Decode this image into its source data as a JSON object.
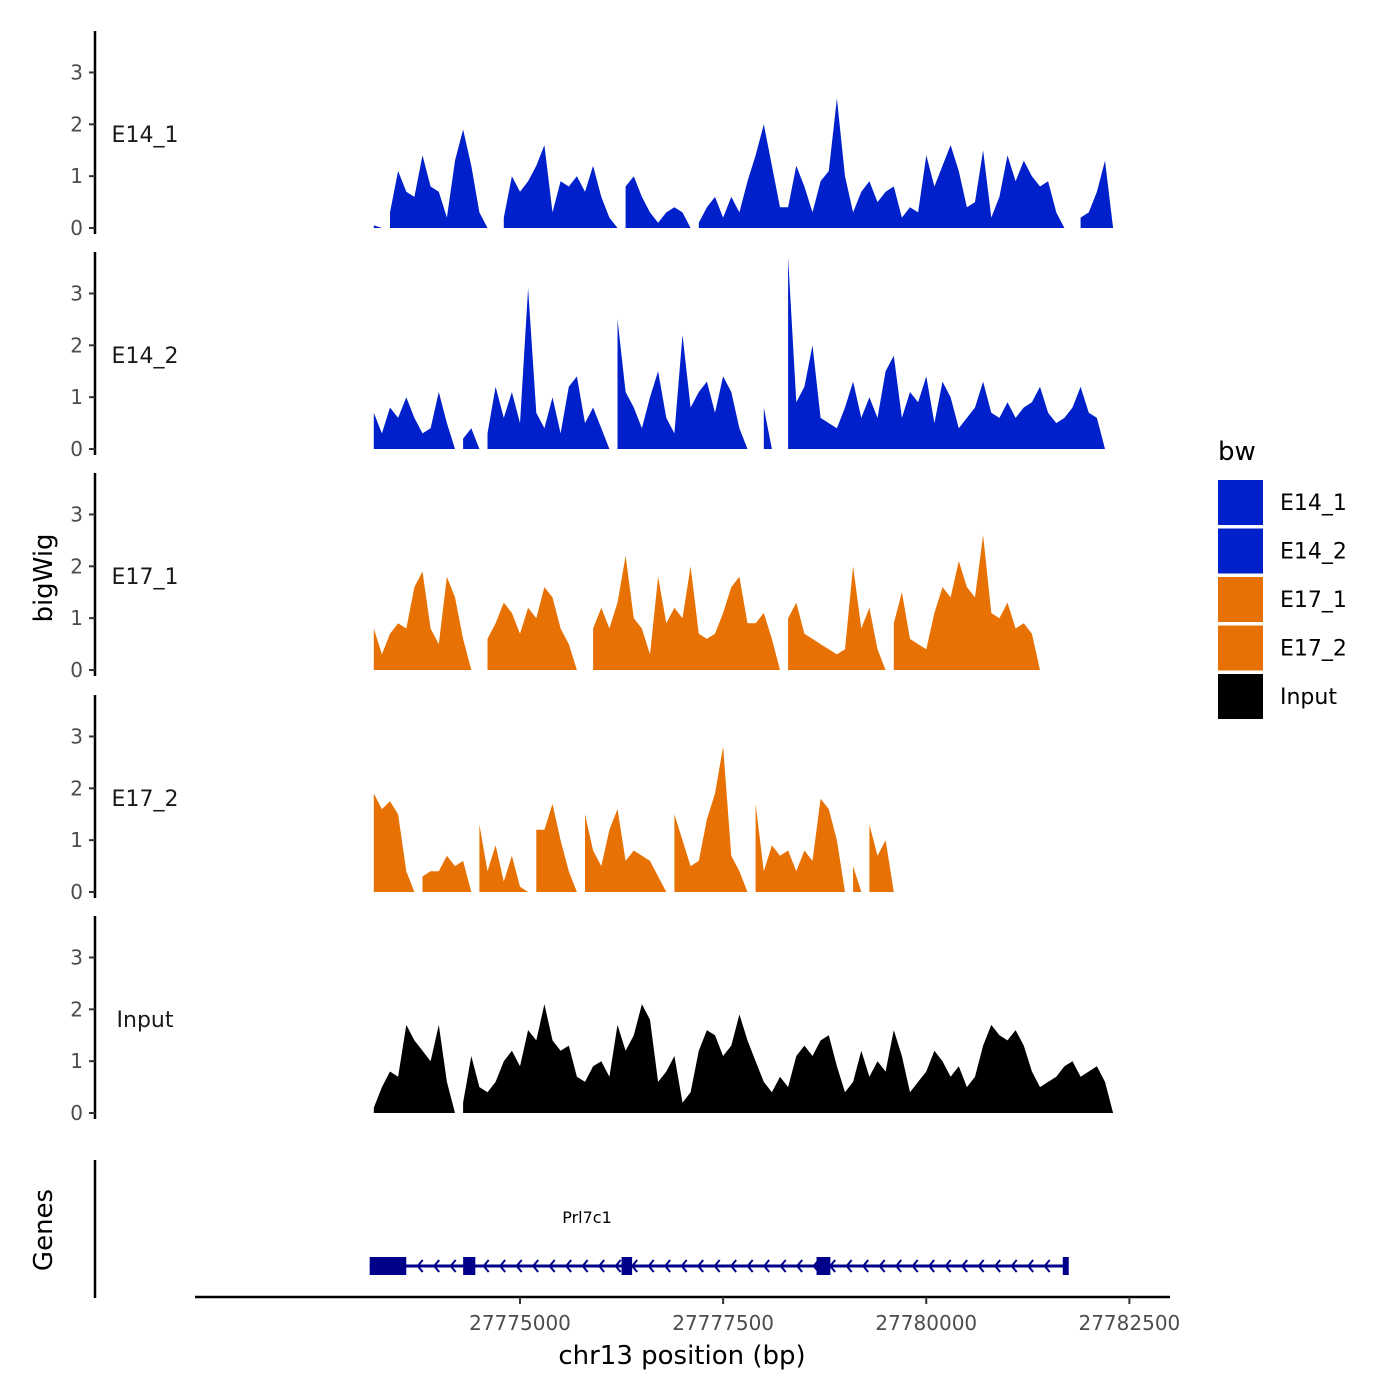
{
  "chart_data": {
    "type": "area",
    "x": [
      27773200,
      27773300,
      27773400,
      27773500,
      27773600,
      27773700,
      27773800,
      27773900,
      27774000,
      27774100,
      27774200,
      27774300,
      27774400,
      27774500,
      27774600,
      27774700,
      27774800,
      27774900,
      27775000,
      27775100,
      27775200,
      27775300,
      27775400,
      27775500,
      27775600,
      27775700,
      27775800,
      27775900,
      27776000,
      27776100,
      27776200,
      27776300,
      27776400,
      27776500,
      27776600,
      27776700,
      27776800,
      27776900,
      27777000,
      27777100,
      27777200,
      27777300,
      27777400,
      27777500,
      27777600,
      27777700,
      27777800,
      27777900,
      27778000,
      27778100,
      27778200,
      27778300,
      27778400,
      27778500,
      27778600,
      27778700,
      27778800,
      27778900,
      27779000,
      27779100,
      27779200,
      27779300,
      27779400,
      27779500,
      27779600,
      27779700,
      27779800,
      27779900,
      27780000,
      27780100,
      27780200,
      27780300,
      27780400,
      27780500,
      27780600,
      27780700,
      27780800,
      27780900,
      27781000,
      27781100,
      27781200,
      27781300,
      27781400,
      27781500,
      27781600,
      27781700,
      27781800,
      27781900,
      27782000,
      27782100,
      27782200,
      27782300,
      27782400,
      27782500,
      27782600,
      27782700
    ],
    "series": [
      {
        "name": "E14_1",
        "color": "#0020CC",
        "values": [
          0.05,
          0.0,
          0.3,
          1.1,
          0.7,
          0.6,
          1.4,
          0.8,
          0.7,
          0.2,
          1.3,
          1.9,
          1.2,
          0.3,
          0.0,
          0.0,
          0.2,
          1.0,
          0.7,
          0.9,
          1.2,
          1.6,
          0.3,
          0.9,
          0.8,
          1.0,
          0.7,
          1.2,
          0.6,
          0.2,
          0.0,
          0.8,
          1.0,
          0.6,
          0.3,
          0.1,
          0.3,
          0.4,
          0.3,
          0.0,
          0.1,
          0.4,
          0.6,
          0.2,
          0.6,
          0.3,
          0.9,
          1.4,
          2.0,
          1.2,
          0.4,
          0.4,
          1.2,
          0.8,
          0.3,
          0.9,
          1.1,
          2.5,
          1.0,
          0.3,
          0.7,
          0.9,
          0.5,
          0.7,
          0.8,
          0.2,
          0.4,
          0.3,
          1.4,
          0.8,
          1.2,
          1.6,
          1.1,
          0.4,
          0.5,
          1.5,
          0.2,
          0.6,
          1.4,
          0.9,
          1.3,
          1.0,
          0.8,
          0.9,
          0.3,
          0.0,
          0.0,
          0.2,
          0.3,
          0.7,
          1.3,
          0.0,
          0.0,
          0.0,
          0.0,
          0.0
        ]
      },
      {
        "name": "E14_2",
        "color": "#0020CC",
        "values": [
          0.7,
          0.3,
          0.8,
          0.6,
          1.0,
          0.6,
          0.3,
          0.4,
          1.1,
          0.5,
          0.0,
          0.2,
          0.4,
          0.0,
          0.3,
          1.2,
          0.6,
          1.1,
          0.5,
          3.1,
          0.7,
          0.4,
          1.0,
          0.3,
          1.2,
          1.4,
          0.5,
          0.8,
          0.4,
          0.0,
          2.5,
          1.1,
          0.8,
          0.4,
          1.0,
          1.5,
          0.6,
          0.3,
          2.2,
          0.8,
          1.1,
          1.3,
          0.7,
          1.4,
          1.1,
          0.4,
          0.0,
          0.0,
          0.8,
          0.0,
          0.0,
          3.7,
          0.9,
          1.2,
          2.0,
          0.6,
          0.5,
          0.4,
          0.8,
          1.3,
          0.6,
          1.0,
          0.6,
          1.5,
          1.8,
          0.6,
          1.1,
          0.9,
          1.4,
          0.5,
          1.3,
          1.0,
          0.4,
          0.6,
          0.8,
          1.3,
          0.7,
          0.6,
          0.9,
          0.6,
          0.8,
          0.9,
          1.2,
          0.7,
          0.5,
          0.6,
          0.8,
          1.2,
          0.7,
          0.6,
          0.0,
          0.0,
          0.0,
          0.0,
          0.0,
          0.0
        ]
      },
      {
        "name": "E17_1",
        "color": "#E87103",
        "values": [
          0.8,
          0.3,
          0.7,
          0.9,
          0.8,
          1.6,
          1.9,
          0.8,
          0.5,
          1.8,
          1.4,
          0.6,
          0.0,
          0.0,
          0.6,
          0.9,
          1.3,
          1.1,
          0.7,
          1.2,
          1.0,
          1.6,
          1.4,
          0.8,
          0.5,
          0.0,
          0.0,
          0.8,
          1.2,
          0.8,
          1.3,
          2.2,
          1.0,
          0.8,
          0.3,
          1.8,
          0.9,
          1.2,
          1.0,
          2.0,
          0.7,
          0.6,
          0.7,
          1.1,
          1.6,
          1.8,
          0.9,
          0.9,
          1.1,
          0.6,
          0.0,
          1.0,
          1.3,
          0.7,
          0.6,
          0.5,
          0.4,
          0.3,
          0.4,
          2.0,
          0.8,
          1.2,
          0.4,
          0.0,
          0.9,
          1.5,
          0.6,
          0.5,
          0.4,
          1.1,
          1.6,
          1.4,
          2.1,
          1.6,
          1.4,
          2.6,
          1.1,
          1.0,
          1.3,
          0.8,
          0.9,
          0.7,
          0.0,
          0.0,
          0.0,
          0.0,
          0.0,
          0.0,
          0.0,
          0.0,
          0.0,
          0.0,
          0.0,
          0.0,
          0.0,
          0.0
        ]
      },
      {
        "name": "E17_2",
        "color": "#E87103",
        "values": [
          1.9,
          1.6,
          1.75,
          1.5,
          0.4,
          0.0,
          0.3,
          0.4,
          0.4,
          0.7,
          0.5,
          0.6,
          0.0,
          1.3,
          0.4,
          0.9,
          0.2,
          0.7,
          0.1,
          0.0,
          1.2,
          1.2,
          1.7,
          1.0,
          0.4,
          0.0,
          1.5,
          0.8,
          0.5,
          1.2,
          1.6,
          0.6,
          0.8,
          0.7,
          0.6,
          0.3,
          0.0,
          1.5,
          1.0,
          0.5,
          0.6,
          1.4,
          1.9,
          2.8,
          0.7,
          0.4,
          0.0,
          1.7,
          0.4,
          0.9,
          0.7,
          0.8,
          0.4,
          0.8,
          0.6,
          1.8,
          1.6,
          1.0,
          0.0,
          0.5,
          0.0,
          1.3,
          0.7,
          1.0,
          0.0,
          0.0,
          0.0,
          0.0,
          0.0,
          0.0,
          0.0,
          0.0,
          0.0,
          0.0,
          0.0,
          0.0,
          0.0,
          0.0,
          0.0,
          0.0,
          0.0,
          0.0,
          0.0,
          0.0,
          0.0,
          0.0,
          0.0,
          0.0,
          0.0,
          0.0,
          0.0,
          0.0,
          0.0,
          0.0,
          0.0,
          0.0
        ]
      },
      {
        "name": "Input",
        "color": "#000000",
        "values": [
          0.1,
          0.5,
          0.8,
          0.7,
          1.7,
          1.4,
          1.2,
          1.0,
          1.7,
          0.6,
          0.0,
          0.2,
          1.1,
          0.5,
          0.4,
          0.6,
          1.0,
          1.2,
          0.9,
          1.6,
          1.4,
          2.1,
          1.4,
          1.2,
          1.3,
          0.7,
          0.6,
          0.9,
          1.0,
          0.7,
          1.7,
          1.2,
          1.5,
          2.1,
          1.8,
          0.6,
          0.8,
          1.1,
          0.2,
          0.4,
          1.2,
          1.6,
          1.5,
          1.1,
          1.3,
          1.9,
          1.4,
          1.0,
          0.6,
          0.4,
          0.7,
          0.5,
          1.1,
          1.3,
          1.1,
          1.4,
          1.5,
          0.9,
          0.4,
          0.6,
          1.2,
          0.7,
          1.0,
          0.8,
          1.6,
          1.1,
          0.4,
          0.6,
          0.8,
          1.2,
          1.0,
          0.7,
          0.9,
          0.5,
          0.7,
          1.3,
          1.7,
          1.5,
          1.4,
          1.6,
          1.3,
          0.8,
          0.5,
          0.6,
          0.7,
          0.9,
          1.0,
          0.7,
          0.8,
          0.9,
          0.6,
          0.0,
          0.0,
          0.0,
          0.0,
          0.0
        ]
      }
    ],
    "tracks": [
      "E14_1",
      "E14_2",
      "E17_1",
      "E17_2",
      "Input"
    ],
    "ylim": [
      0,
      3.8
    ],
    "yticks": [
      "0",
      "1",
      "2",
      "3"
    ],
    "xlim": [
      27771000,
      27783000
    ],
    "xticks": [
      27775000,
      27777500,
      27780000,
      27782500
    ],
    "xtick_labels": [
      "27775000",
      "27777500",
      "27780000",
      "27782500"
    ],
    "xlabel": "chr13 position (bp)",
    "ylabel": "bigWig",
    "genes_label": "Genes",
    "gene": {
      "name": "Prl7c1",
      "start": 27773150,
      "end": 27781750,
      "strand": "-",
      "color": "#00008B",
      "exons": [
        [
          27773150,
          27773600
        ],
        [
          27774300,
          27774450
        ],
        [
          27776250,
          27776380
        ],
        [
          27778650,
          27778820
        ],
        [
          27781680,
          27781750
        ]
      ]
    },
    "legend": {
      "title": "bw",
      "position": "right",
      "entries": [
        {
          "label": "E14_1",
          "color": "#0020CC"
        },
        {
          "label": "E14_2",
          "color": "#0020CC"
        },
        {
          "label": "E17_1",
          "color": "#E87103"
        },
        {
          "label": "E17_2",
          "color": "#E87103"
        },
        {
          "label": "Input",
          "color": "#000000"
        }
      ]
    }
  }
}
